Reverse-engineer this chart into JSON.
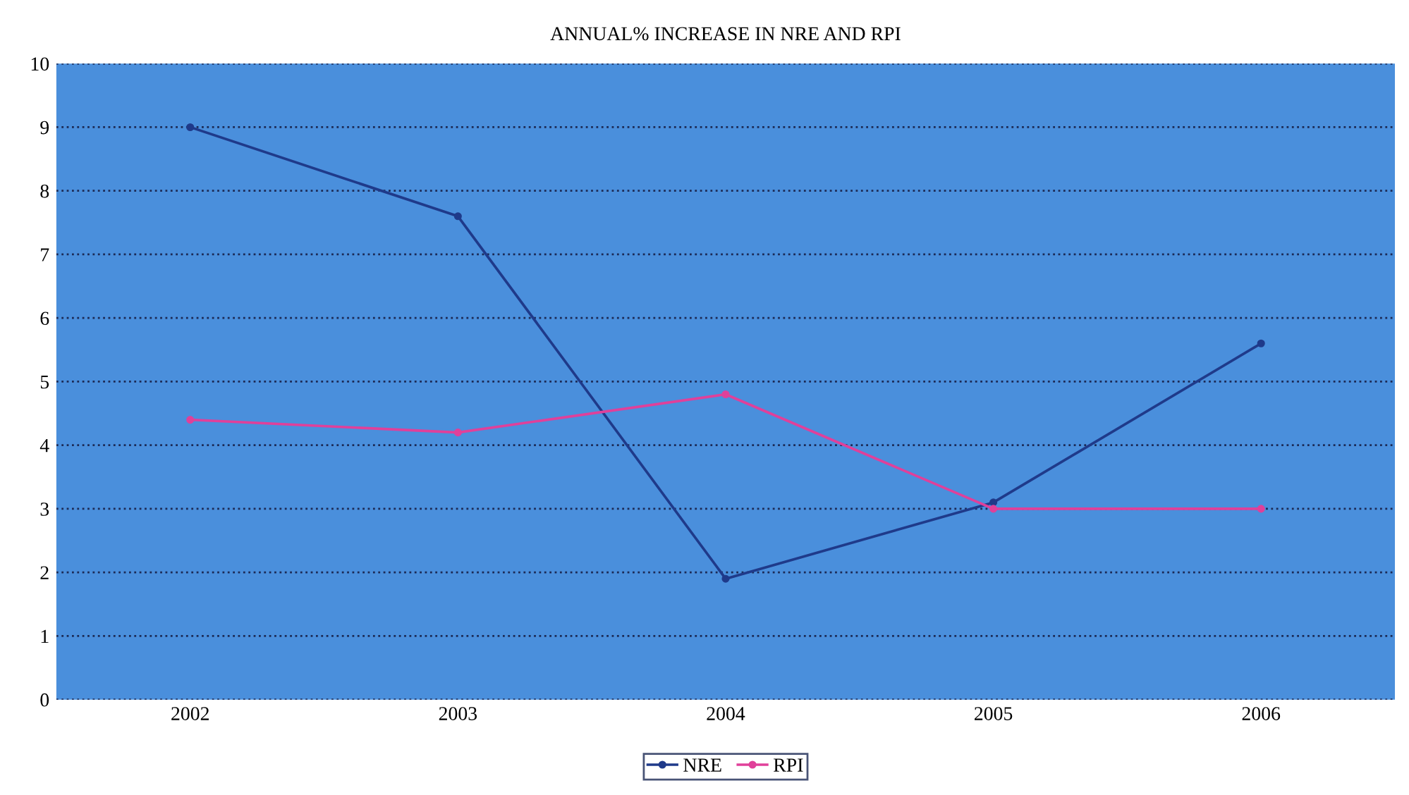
{
  "chart_data": {
    "type": "line",
    "title": "ANNUAL% INCREASE IN NRE AND RPI",
    "categories": [
      "2002",
      "2003",
      "2004",
      "2005",
      "2006"
    ],
    "series": [
      {
        "name": "NRE",
        "color": "#1f3a8a",
        "values": [
          9.0,
          7.6,
          1.9,
          3.1,
          5.6
        ]
      },
      {
        "name": "RPI",
        "color": "#e0409a",
        "values": [
          4.4,
          4.2,
          4.8,
          3.0,
          3.0
        ]
      }
    ],
    "ylim": [
      0,
      10
    ],
    "yticks": [
      0,
      1,
      2,
      3,
      4,
      5,
      6,
      7,
      8,
      9,
      10
    ],
    "grid": "y",
    "legend": "bottom",
    "marker": "circle",
    "line_style": "solid"
  }
}
